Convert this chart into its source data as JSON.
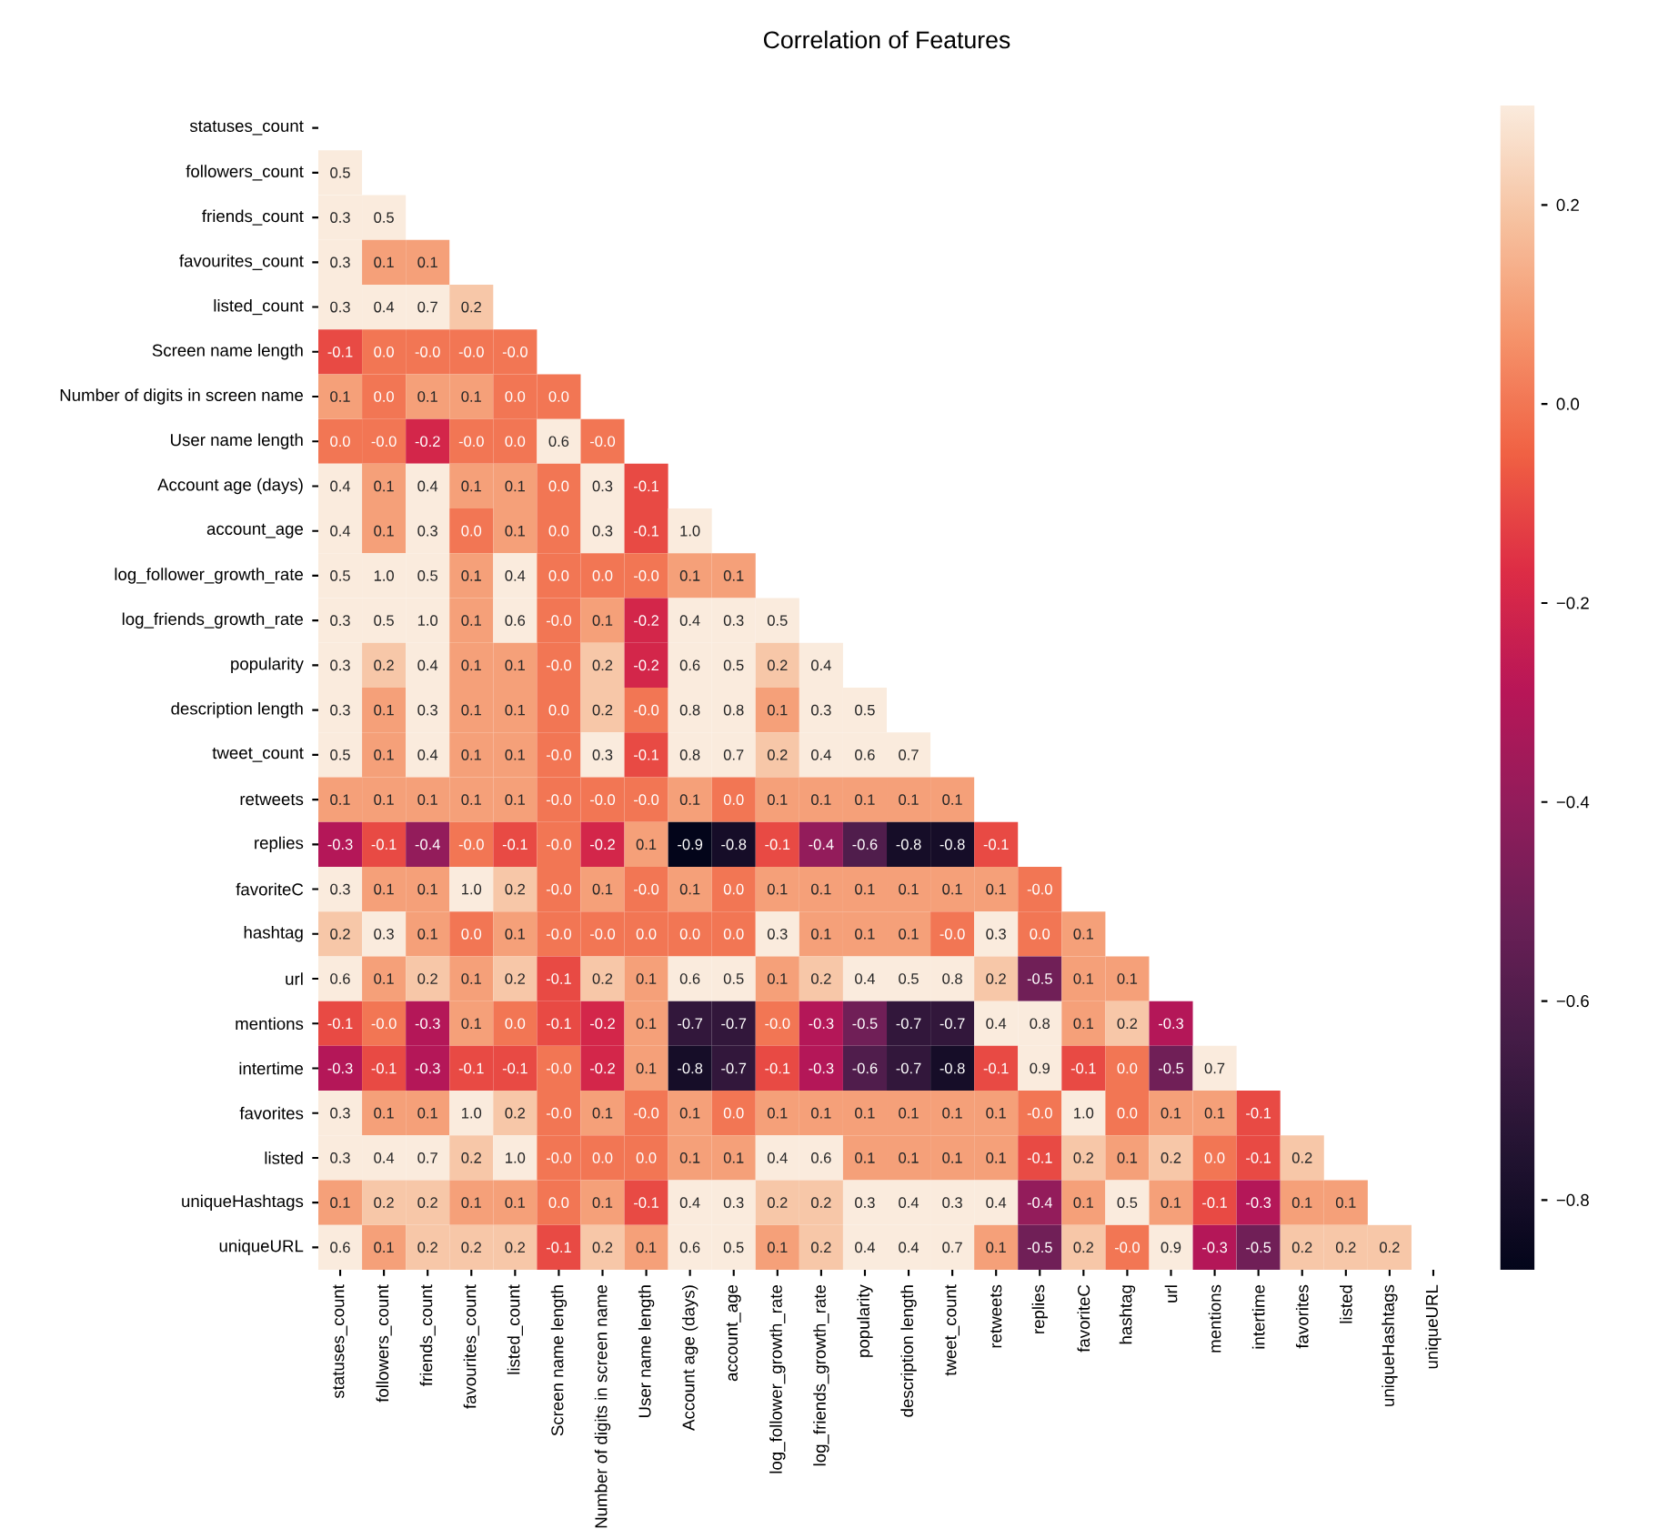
{
  "chart_data": {
    "type": "heatmap",
    "title": "Correlation of Features",
    "categories": [
      "statuses_count",
      "followers_count",
      "friends_count",
      "favourites_count",
      "listed_count",
      "Screen name length",
      "Number of digits in screen name",
      "User name length",
      "Account age (days)",
      "account_age",
      "log_follower_growth_rate",
      "log_friends_growth_rate",
      "popularity",
      "description length",
      "tweet_count",
      "retweets",
      "replies",
      "favoriteC",
      "hashtag",
      "url",
      "mentions",
      "intertime",
      "favorites",
      "listed",
      "uniqueHashtags",
      "uniqueURL"
    ],
    "y_categories": [
      "statuses_count",
      "followers_count",
      "friends_count",
      "favourites_count",
      "listed_count",
      "Screen name length",
      "Number of digits in screen name",
      "User name length",
      "Account age (days)",
      "account_age",
      "log_follower_growth_rate",
      "log_friends_growth_rate",
      "popularity",
      "description length",
      "tweet_count",
      "retweets",
      "replies",
      "favoriteC",
      "hashtag",
      "url",
      "mentions",
      "intertime",
      "favorites",
      "listed",
      "uniqueHashtags",
      "uniqueURL"
    ],
    "cells": [
      [
        null,
        null,
        null,
        null,
        null,
        null,
        null,
        null,
        null,
        null,
        null,
        null,
        null,
        null,
        null,
        null,
        null,
        null,
        null,
        null,
        null,
        null,
        null,
        null,
        null,
        null
      ],
      [
        0.5,
        null,
        null,
        null,
        null,
        null,
        null,
        null,
        null,
        null,
        null,
        null,
        null,
        null,
        null,
        null,
        null,
        null,
        null,
        null,
        null,
        null,
        null,
        null,
        null,
        null
      ],
      [
        0.3,
        0.5,
        null,
        null,
        null,
        null,
        null,
        null,
        null,
        null,
        null,
        null,
        null,
        null,
        null,
        null,
        null,
        null,
        null,
        null,
        null,
        null,
        null,
        null,
        null,
        null
      ],
      [
        0.3,
        0.1,
        0.1,
        null,
        null,
        null,
        null,
        null,
        null,
        null,
        null,
        null,
        null,
        null,
        null,
        null,
        null,
        null,
        null,
        null,
        null,
        null,
        null,
        null,
        null,
        null
      ],
      [
        0.3,
        0.4,
        0.7,
        0.2,
        null,
        null,
        null,
        null,
        null,
        null,
        null,
        null,
        null,
        null,
        null,
        null,
        null,
        null,
        null,
        null,
        null,
        null,
        null,
        null,
        null,
        null
      ],
      [
        -0.1,
        0.0,
        -0.0,
        -0.0,
        -0.0,
        null,
        null,
        null,
        null,
        null,
        null,
        null,
        null,
        null,
        null,
        null,
        null,
        null,
        null,
        null,
        null,
        null,
        null,
        null,
        null,
        null
      ],
      [
        0.1,
        0.0,
        0.1,
        0.1,
        0.0,
        0.0,
        null,
        null,
        null,
        null,
        null,
        null,
        null,
        null,
        null,
        null,
        null,
        null,
        null,
        null,
        null,
        null,
        null,
        null,
        null,
        null
      ],
      [
        0.0,
        -0.0,
        -0.2,
        -0.0,
        0.0,
        0.6,
        -0.0,
        null,
        null,
        null,
        null,
        null,
        null,
        null,
        null,
        null,
        null,
        null,
        null,
        null,
        null,
        null,
        null,
        null,
        null,
        null
      ],
      [
        0.4,
        0.1,
        0.4,
        0.1,
        0.1,
        0.0,
        0.3,
        -0.1,
        null,
        null,
        null,
        null,
        null,
        null,
        null,
        null,
        null,
        null,
        null,
        null,
        null,
        null,
        null,
        null,
        null,
        null
      ],
      [
        0.4,
        0.1,
        0.3,
        0.0,
        0.1,
        0.0,
        0.3,
        -0.1,
        1.0,
        null,
        null,
        null,
        null,
        null,
        null,
        null,
        null,
        null,
        null,
        null,
        null,
        null,
        null,
        null,
        null,
        null
      ],
      [
        0.5,
        1.0,
        0.5,
        0.1,
        0.4,
        0.0,
        0.0,
        -0.0,
        0.1,
        0.1,
        null,
        null,
        null,
        null,
        null,
        null,
        null,
        null,
        null,
        null,
        null,
        null,
        null,
        null,
        null,
        null
      ],
      [
        0.3,
        0.5,
        1.0,
        0.1,
        0.6,
        -0.0,
        0.1,
        -0.2,
        0.4,
        0.3,
        0.5,
        null,
        null,
        null,
        null,
        null,
        null,
        null,
        null,
        null,
        null,
        null,
        null,
        null,
        null,
        null
      ],
      [
        0.3,
        0.2,
        0.4,
        0.1,
        0.1,
        -0.0,
        0.2,
        -0.2,
        0.6,
        0.5,
        0.2,
        0.4,
        null,
        null,
        null,
        null,
        null,
        null,
        null,
        null,
        null,
        null,
        null,
        null,
        null,
        null
      ],
      [
        0.3,
        0.1,
        0.3,
        0.1,
        0.1,
        0.0,
        0.2,
        -0.0,
        0.8,
        0.8,
        0.1,
        0.3,
        0.5,
        null,
        null,
        null,
        null,
        null,
        null,
        null,
        null,
        null,
        null,
        null,
        null,
        null
      ],
      [
        0.5,
        0.1,
        0.4,
        0.1,
        0.1,
        -0.0,
        0.3,
        -0.1,
        0.8,
        0.7,
        0.2,
        0.4,
        0.6,
        0.7,
        null,
        null,
        null,
        null,
        null,
        null,
        null,
        null,
        null,
        null,
        null,
        null
      ],
      [
        0.1,
        0.1,
        0.1,
        0.1,
        0.1,
        -0.0,
        -0.0,
        -0.0,
        0.1,
        0.0,
        0.1,
        0.1,
        0.1,
        0.1,
        0.1,
        null,
        null,
        null,
        null,
        null,
        null,
        null,
        null,
        null,
        null,
        null
      ],
      [
        -0.3,
        -0.1,
        -0.4,
        -0.0,
        -0.1,
        -0.0,
        -0.2,
        0.1,
        -0.9,
        -0.8,
        -0.1,
        -0.4,
        -0.6,
        -0.8,
        -0.8,
        -0.1,
        null,
        null,
        null,
        null,
        null,
        null,
        null,
        null,
        null,
        null
      ],
      [
        0.3,
        0.1,
        0.1,
        1.0,
        0.2,
        -0.0,
        0.1,
        -0.0,
        0.1,
        0.0,
        0.1,
        0.1,
        0.1,
        0.1,
        0.1,
        0.1,
        -0.0,
        null,
        null,
        null,
        null,
        null,
        null,
        null,
        null,
        null
      ],
      [
        0.2,
        0.3,
        0.1,
        0.0,
        0.1,
        -0.0,
        -0.0,
        0.0,
        0.0,
        0.0,
        0.3,
        0.1,
        0.1,
        0.1,
        -0.0,
        0.3,
        0.0,
        0.1,
        null,
        null,
        null,
        null,
        null,
        null,
        null,
        null
      ],
      [
        0.6,
        0.1,
        0.2,
        0.1,
        0.2,
        -0.1,
        0.2,
        0.1,
        0.6,
        0.5,
        0.1,
        0.2,
        0.4,
        0.5,
        0.8,
        0.2,
        -0.5,
        0.1,
        0.1,
        null,
        null,
        null,
        null,
        null,
        null,
        null
      ],
      [
        -0.1,
        -0.0,
        -0.3,
        0.1,
        0.0,
        -0.1,
        -0.2,
        0.1,
        -0.7,
        -0.7,
        -0.0,
        -0.3,
        -0.5,
        -0.7,
        -0.7,
        0.4,
        0.8,
        0.1,
        0.2,
        -0.3,
        null,
        null,
        null,
        null,
        null,
        null
      ],
      [
        -0.3,
        -0.1,
        -0.3,
        -0.1,
        -0.1,
        -0.0,
        -0.2,
        0.1,
        -0.8,
        -0.7,
        -0.1,
        -0.3,
        -0.6,
        -0.7,
        -0.8,
        -0.1,
        0.9,
        -0.1,
        0.0,
        -0.5,
        0.7,
        null,
        null,
        null,
        null,
        null
      ],
      [
        0.3,
        0.1,
        0.1,
        1.0,
        0.2,
        -0.0,
        0.1,
        -0.0,
        0.1,
        0.0,
        0.1,
        0.1,
        0.1,
        0.1,
        0.1,
        0.1,
        -0.0,
        1.0,
        0.0,
        0.1,
        0.1,
        -0.1,
        null,
        null,
        null,
        null
      ],
      [
        0.3,
        0.4,
        0.7,
        0.2,
        1.0,
        -0.0,
        0.0,
        0.0,
        0.1,
        0.1,
        0.4,
        0.6,
        0.1,
        0.1,
        0.1,
        0.1,
        -0.1,
        0.2,
        0.1,
        0.2,
        0.0,
        -0.1,
        0.2,
        null,
        null,
        null
      ],
      [
        0.1,
        0.2,
        0.2,
        0.1,
        0.1,
        0.0,
        0.1,
        -0.1,
        0.4,
        0.3,
        0.2,
        0.2,
        0.3,
        0.4,
        0.3,
        0.4,
        -0.4,
        0.1,
        0.5,
        0.1,
        -0.1,
        -0.3,
        0.1,
        0.1,
        null,
        null
      ],
      [
        0.6,
        0.1,
        0.2,
        0.2,
        0.2,
        -0.1,
        0.2,
        0.1,
        0.6,
        0.5,
        0.1,
        0.2,
        0.4,
        0.4,
        0.7,
        0.1,
        -0.5,
        0.2,
        -0.0,
        0.9,
        -0.3,
        -0.5,
        0.2,
        0.2,
        0.2,
        null
      ]
    ],
    "cell_labels": [
      [
        null,
        null,
        null,
        null,
        null,
        null,
        null,
        null,
        null,
        null,
        null,
        null,
        null,
        null,
        null,
        null,
        null,
        null,
        null,
        null,
        null,
        null,
        null,
        null,
        null,
        null
      ],
      [
        "0.5",
        null,
        null,
        null,
        null,
        null,
        null,
        null,
        null,
        null,
        null,
        null,
        null,
        null,
        null,
        null,
        null,
        null,
        null,
        null,
        null,
        null,
        null,
        null,
        null,
        null
      ],
      [
        "0.3",
        "0.5",
        null,
        null,
        null,
        null,
        null,
        null,
        null,
        null,
        null,
        null,
        null,
        null,
        null,
        null,
        null,
        null,
        null,
        null,
        null,
        null,
        null,
        null,
        null,
        null
      ],
      [
        "0.3",
        "0.1",
        "0.1",
        null,
        null,
        null,
        null,
        null,
        null,
        null,
        null,
        null,
        null,
        null,
        null,
        null,
        null,
        null,
        null,
        null,
        null,
        null,
        null,
        null,
        null,
        null
      ],
      [
        "0.3",
        "0.4",
        "0.7",
        "0.2",
        null,
        null,
        null,
        null,
        null,
        null,
        null,
        null,
        null,
        null,
        null,
        null,
        null,
        null,
        null,
        null,
        null,
        null,
        null,
        null,
        null,
        null
      ],
      [
        "-0.1",
        "0.0",
        "-0.0",
        "-0.0",
        "-0.0",
        null,
        null,
        null,
        null,
        null,
        null,
        null,
        null,
        null,
        null,
        null,
        null,
        null,
        null,
        null,
        null,
        null,
        null,
        null,
        null,
        null
      ],
      [
        "0.1",
        "0.0",
        "0.1",
        "0.1",
        "0.0",
        "0.0",
        null,
        null,
        null,
        null,
        null,
        null,
        null,
        null,
        null,
        null,
        null,
        null,
        null,
        null,
        null,
        null,
        null,
        null,
        null,
        null
      ],
      [
        "0.0",
        "-0.0",
        "-0.2",
        "-0.0",
        "0.0",
        "0.6",
        "-0.0",
        null,
        null,
        null,
        null,
        null,
        null,
        null,
        null,
        null,
        null,
        null,
        null,
        null,
        null,
        null,
        null,
        null,
        null,
        null
      ],
      [
        "0.4",
        "0.1",
        "0.4",
        "0.1",
        "0.1",
        "0.0",
        "0.3",
        "-0.1",
        null,
        null,
        null,
        null,
        null,
        null,
        null,
        null,
        null,
        null,
        null,
        null,
        null,
        null,
        null,
        null,
        null,
        null
      ],
      [
        "0.4",
        "0.1",
        "0.3",
        "0.0",
        "0.1",
        "0.0",
        "0.3",
        "-0.1",
        "1.0",
        null,
        null,
        null,
        null,
        null,
        null,
        null,
        null,
        null,
        null,
        null,
        null,
        null,
        null,
        null,
        null,
        null
      ],
      [
        "0.5",
        "1.0",
        "0.5",
        "0.1",
        "0.4",
        "0.0",
        "0.0",
        "-0.0",
        "0.1",
        "0.1",
        null,
        null,
        null,
        null,
        null,
        null,
        null,
        null,
        null,
        null,
        null,
        null,
        null,
        null,
        null,
        null
      ],
      [
        "0.3",
        "0.5",
        "1.0",
        "0.1",
        "0.6",
        "-0.0",
        "0.1",
        "-0.2",
        "0.4",
        "0.3",
        "0.5",
        null,
        null,
        null,
        null,
        null,
        null,
        null,
        null,
        null,
        null,
        null,
        null,
        null,
        null,
        null
      ],
      [
        "0.3",
        "0.2",
        "0.4",
        "0.1",
        "0.1",
        "-0.0",
        "0.2",
        "-0.2",
        "0.6",
        "0.5",
        "0.2",
        "0.4",
        null,
        null,
        null,
        null,
        null,
        null,
        null,
        null,
        null,
        null,
        null,
        null,
        null,
        null
      ],
      [
        "0.3",
        "0.1",
        "0.3",
        "0.1",
        "0.1",
        "0.0",
        "0.2",
        "-0.0",
        "0.8",
        "0.8",
        "0.1",
        "0.3",
        "0.5",
        null,
        null,
        null,
        null,
        null,
        null,
        null,
        null,
        null,
        null,
        null,
        null,
        null
      ],
      [
        "0.5",
        "0.1",
        "0.4",
        "0.1",
        "0.1",
        "-0.0",
        "0.3",
        "-0.1",
        "0.8",
        "0.7",
        "0.2",
        "0.4",
        "0.6",
        "0.7",
        null,
        null,
        null,
        null,
        null,
        null,
        null,
        null,
        null,
        null,
        null,
        null
      ],
      [
        "0.1",
        "0.1",
        "0.1",
        "0.1",
        "0.1",
        "-0.0",
        "-0.0",
        "-0.0",
        "0.1",
        "0.0",
        "0.1",
        "0.1",
        "0.1",
        "0.1",
        "0.1",
        null,
        null,
        null,
        null,
        null,
        null,
        null,
        null,
        null,
        null,
        null
      ],
      [
        "-0.3",
        "-0.1",
        "-0.4",
        "-0.0",
        "-0.1",
        "-0.0",
        "-0.2",
        "0.1",
        "-0.9",
        "-0.8",
        "-0.1",
        "-0.4",
        "-0.6",
        "-0.8",
        "-0.8",
        "-0.1",
        null,
        null,
        null,
        null,
        null,
        null,
        null,
        null,
        null,
        null
      ],
      [
        "0.3",
        "0.1",
        "0.1",
        "1.0",
        "0.2",
        "-0.0",
        "0.1",
        "-0.0",
        "0.1",
        "0.0",
        "0.1",
        "0.1",
        "0.1",
        "0.1",
        "0.1",
        "0.1",
        "-0.0",
        null,
        null,
        null,
        null,
        null,
        null,
        null,
        null,
        null
      ],
      [
        "0.2",
        "0.3",
        "0.1",
        "0.0",
        "0.1",
        "-0.0",
        "-0.0",
        "0.0",
        "0.0",
        "0.0",
        "0.3",
        "0.1",
        "0.1",
        "0.1",
        "-0.0",
        "0.3",
        "0.0",
        "0.1",
        null,
        null,
        null,
        null,
        null,
        null,
        null,
        null
      ],
      [
        "0.6",
        "0.1",
        "0.2",
        "0.1",
        "0.2",
        "-0.1",
        "0.2",
        "0.1",
        "0.6",
        "0.5",
        "0.1",
        "0.2",
        "0.4",
        "0.5",
        "0.8",
        "0.2",
        "-0.5",
        "0.1",
        "0.1",
        null,
        null,
        null,
        null,
        null,
        null,
        null
      ],
      [
        "-0.1",
        "-0.0",
        "-0.3",
        "0.1",
        "0.0",
        "-0.1",
        "-0.2",
        "0.1",
        "-0.7",
        "-0.7",
        "-0.0",
        "-0.3",
        "-0.5",
        "-0.7",
        "-0.7",
        "0.4",
        "0.8",
        "0.1",
        "0.2",
        "-0.3",
        null,
        null,
        null,
        null,
        null,
        null
      ],
      [
        "-0.3",
        "-0.1",
        "-0.3",
        "-0.1",
        "-0.1",
        "-0.0",
        "-0.2",
        "0.1",
        "-0.8",
        "-0.7",
        "-0.1",
        "-0.3",
        "-0.6",
        "-0.7",
        "-0.8",
        "-0.1",
        "0.9",
        "-0.1",
        "0.0",
        "-0.5",
        "0.7",
        null,
        null,
        null,
        null,
        null
      ],
      [
        "0.3",
        "0.1",
        "0.1",
        "1.0",
        "0.2",
        "-0.0",
        "0.1",
        "-0.0",
        "0.1",
        "0.0",
        "0.1",
        "0.1",
        "0.1",
        "0.1",
        "0.1",
        "0.1",
        "-0.0",
        "1.0",
        "0.0",
        "0.1",
        "0.1",
        "-0.1",
        null,
        null,
        null,
        null
      ],
      [
        "0.3",
        "0.4",
        "0.7",
        "0.2",
        "1.0",
        "-0.0",
        "0.0",
        "0.0",
        "0.1",
        "0.1",
        "0.4",
        "0.6",
        "0.1",
        "0.1",
        "0.1",
        "0.1",
        "-0.1",
        "0.2",
        "0.1",
        "0.2",
        "0.0",
        "-0.1",
        "0.2",
        null,
        null,
        null
      ],
      [
        "0.1",
        "0.2",
        "0.2",
        "0.1",
        "0.1",
        "0.0",
        "0.1",
        "-0.1",
        "0.4",
        "0.3",
        "0.2",
        "0.2",
        "0.3",
        "0.4",
        "0.3",
        "0.4",
        "-0.4",
        "0.1",
        "0.5",
        "0.1",
        "-0.1",
        "-0.3",
        "0.1",
        "0.1",
        null,
        null
      ],
      [
        "0.6",
        "0.1",
        "0.2",
        "0.2",
        "0.2",
        "-0.1",
        "0.2",
        "0.1",
        "0.6",
        "0.5",
        "0.1",
        "0.2",
        "0.4",
        "0.4",
        "0.7",
        "0.1",
        "-0.5",
        "0.2",
        "-0.0",
        "0.9",
        "-0.3",
        "-0.5",
        "0.2",
        "0.2",
        "0.2",
        null
      ]
    ],
    "clim": [
      -0.87,
      0.3
    ],
    "cticks": [
      {
        "value": -0.8,
        "label": "−0.8"
      },
      {
        "value": -0.6,
        "label": "−0.6"
      },
      {
        "value": -0.4,
        "label": "−0.4"
      },
      {
        "value": -0.2,
        "label": "−0.2"
      },
      {
        "value": 0.0,
        "label": "0.0"
      },
      {
        "value": 0.2,
        "label": "0.2"
      }
    ]
  }
}
